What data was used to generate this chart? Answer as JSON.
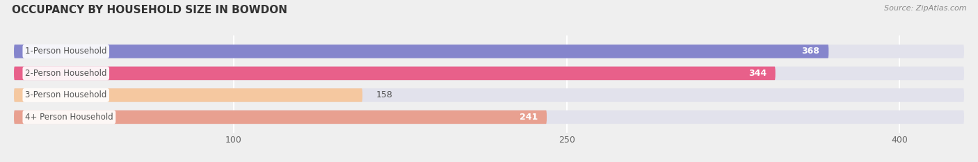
{
  "title": "OCCUPANCY BY HOUSEHOLD SIZE IN BOWDON",
  "source": "Source: ZipAtlas.com",
  "categories": [
    "1-Person Household",
    "2-Person Household",
    "3-Person Household",
    "4+ Person Household"
  ],
  "values": [
    368,
    344,
    158,
    241
  ],
  "bar_colors": [
    "#8585cc",
    "#e8608a",
    "#f5c8a0",
    "#e8a090"
  ],
  "background_color": "#efefef",
  "bar_background_color": "#e2e2ec",
  "xlim": [
    0,
    430
  ],
  "xticks": [
    100,
    250,
    400
  ],
  "figsize": [
    14.06,
    2.33
  ],
  "dpi": 100
}
